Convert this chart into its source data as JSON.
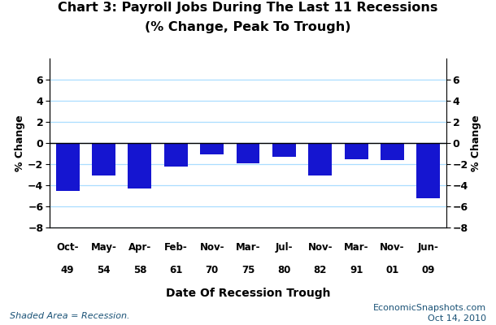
{
  "title_line1": "Chart 3: Payroll Jobs During The Last 11 Recessions",
  "title_line2": "(% Change, Peak To Trough)",
  "categories_line1": [
    "Oct-",
    "May-",
    "Apr-",
    "Feb-",
    "Nov-",
    "Mar-",
    "Jul-",
    "Nov-",
    "Mar-",
    "Nov-",
    "Jun-"
  ],
  "categories_line2": [
    "49",
    "54",
    "58",
    "61",
    "70",
    "75",
    "80",
    "82",
    "91",
    "01",
    "09"
  ],
  "values": [
    -4.5,
    -3.1,
    -4.3,
    -2.2,
    -1.1,
    -1.9,
    -1.3,
    -3.1,
    -1.5,
    -1.6,
    -5.2
  ],
  "bar_color": "#1515d0",
  "ylabel_left": "% Change",
  "ylabel_right": "% Change",
  "xlabel": "Date Of Recession Trough",
  "ylim": [
    -8,
    8
  ],
  "yticks": [
    -8,
    -6,
    -4,
    -2,
    0,
    2,
    4,
    6
  ],
  "grid_color": "#aaddff",
  "background_color": "#ffffff",
  "footnote_left": "Shaded Area = Recession.",
  "footnote_right_line1": "EconomicSnapshots.com",
  "footnote_right_line2": "Oct 14, 2010"
}
